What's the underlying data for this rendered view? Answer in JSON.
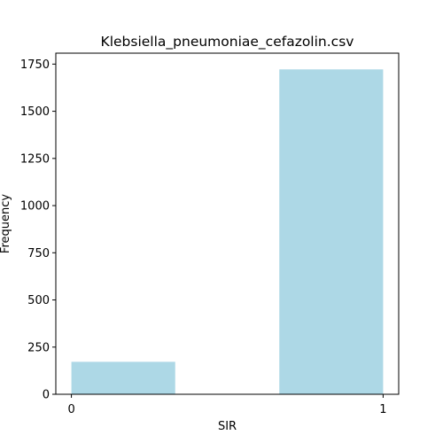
{
  "chart_data": {
    "type": "bar",
    "title": "Klebsiella_pneumoniae_cefazolin.csv",
    "xlabel": "SIR",
    "ylabel": "Frequency",
    "bins": [
      {
        "start": 0,
        "end": 0.333,
        "value": 172
      },
      {
        "start": 0.667,
        "end": 1,
        "value": 1722
      }
    ],
    "xticks": [
      0,
      1
    ],
    "xtick_labels": [
      "0",
      "1"
    ],
    "xlim": [
      -0.05,
      1.05
    ],
    "yticks": [
      0,
      250,
      500,
      750,
      1000,
      1250,
      1500,
      1750
    ],
    "ytick_labels": [
      "0",
      "250",
      "500",
      "750",
      "1000",
      "1250",
      "1500",
      "1750"
    ],
    "ylim": [
      0,
      1808
    ],
    "bar_color": "#add8e6",
    "grid": false,
    "legend": false
  }
}
